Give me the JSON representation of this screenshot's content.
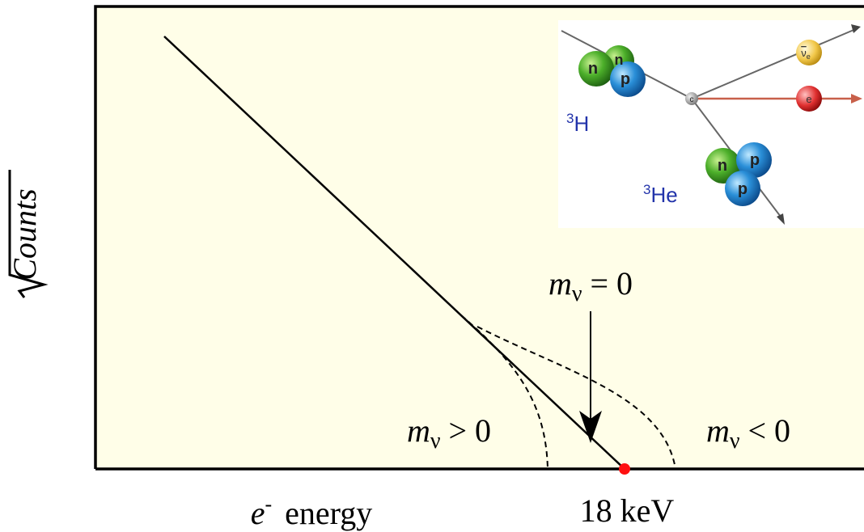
{
  "axes": {
    "y_label": "Counts",
    "x_label": {
      "symbol": "e",
      "superscript": "-",
      "text": "energy"
    },
    "endpoint_label": "18 keV"
  },
  "curves": [
    {
      "symbol": "m",
      "subscript": "ν",
      "relation": "= 0"
    },
    {
      "symbol": "m",
      "subscript": "ν",
      "relation": "> 0"
    },
    {
      "symbol": "m",
      "subscript": "ν",
      "relation": "< 0"
    }
  ],
  "inset": {
    "parent": {
      "mass": "3",
      "element": "H",
      "nucleons": [
        "n",
        "n",
        "p"
      ]
    },
    "daughter": {
      "mass": "3",
      "element": "He",
      "nucleons": [
        "n",
        "p",
        "p"
      ]
    },
    "vertex": "c",
    "electron": "e",
    "antineutrino": {
      "symbol": "ν",
      "subscript": "e"
    }
  }
}
